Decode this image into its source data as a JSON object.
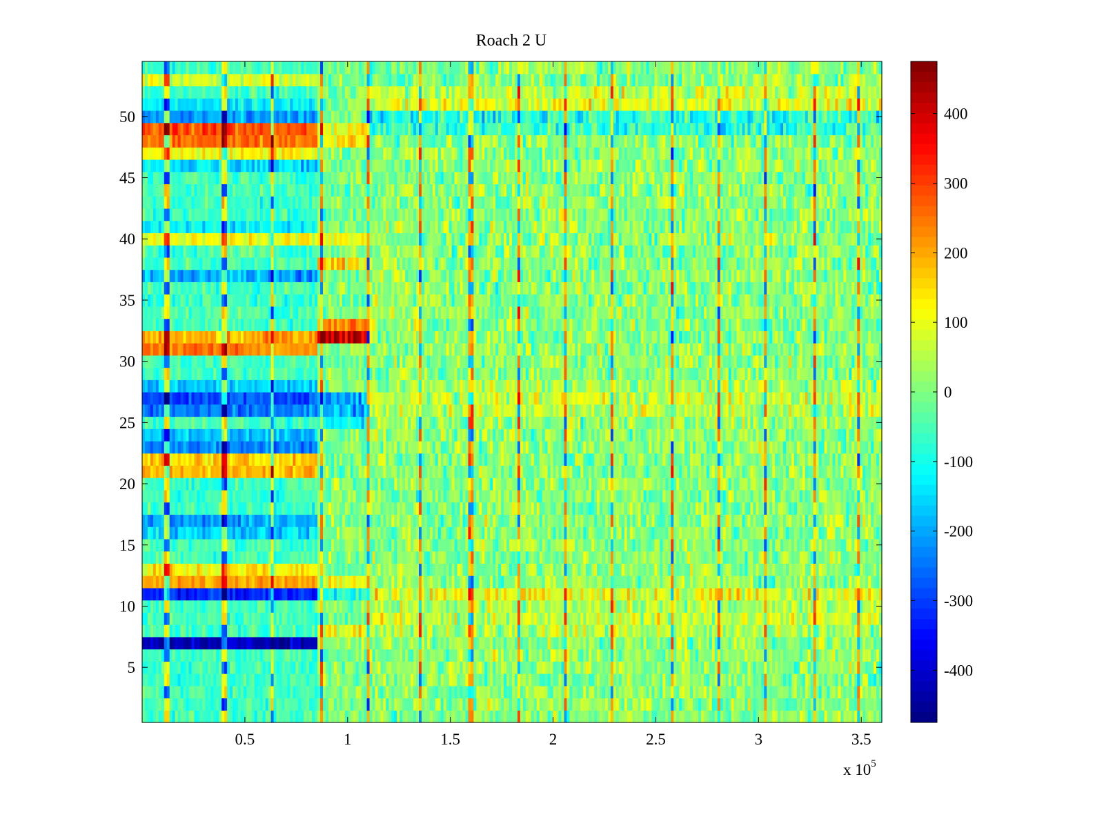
{
  "chart_data": {
    "type": "heatmap",
    "title": "Roach 2 U",
    "xlabel": "",
    "ylabel": "",
    "x_multiplier_label": {
      "base": "x 10",
      "exponent": "5"
    },
    "xlim": [
      0,
      360000
    ],
    "ylim": [
      0.5,
      54.5
    ],
    "rows": 54,
    "x_ticks": [
      {
        "value": 50000,
        "label": "0.5"
      },
      {
        "value": 100000,
        "label": "1"
      },
      {
        "value": 150000,
        "label": "1.5"
      },
      {
        "value": 200000,
        "label": "2"
      },
      {
        "value": 250000,
        "label": "2.5"
      },
      {
        "value": 300000,
        "label": "3"
      },
      {
        "value": 350000,
        "label": "3.5"
      }
    ],
    "y_ticks": [
      {
        "value": 5,
        "label": "5"
      },
      {
        "value": 10,
        "label": "10"
      },
      {
        "value": 15,
        "label": "15"
      },
      {
        "value": 20,
        "label": "20"
      },
      {
        "value": 25,
        "label": "25"
      },
      {
        "value": 30,
        "label": "30"
      },
      {
        "value": 35,
        "label": "35"
      },
      {
        "value": 40,
        "label": "40"
      },
      {
        "value": 45,
        "label": "45"
      },
      {
        "value": 50,
        "label": "50"
      }
    ],
    "colorbar": {
      "colormap": "jet",
      "range": [
        -475,
        475
      ],
      "ticks": [
        {
          "value": 400,
          "label": "400"
        },
        {
          "value": 300,
          "label": "300"
        },
        {
          "value": 200,
          "label": "200"
        },
        {
          "value": 100,
          "label": "100"
        },
        {
          "value": 0,
          "label": "0"
        },
        {
          "value": -100,
          "label": "-100"
        },
        {
          "value": -200,
          "label": "-200"
        },
        {
          "value": -300,
          "label": "-300"
        },
        {
          "value": -400,
          "label": "-400"
        }
      ]
    },
    "segment_boundaries_x": [
      0,
      86000,
      110000,
      360000
    ],
    "row_offsets_first_segment": {
      "7": -420,
      "11": -330,
      "12": 190,
      "13": 120,
      "16": -160,
      "17": -200,
      "21": 180,
      "22": 160,
      "23": -240,
      "24": -170,
      "26": -240,
      "27": -280,
      "28": -160,
      "31": 230,
      "32": 200,
      "37": -200,
      "40": 110,
      "41": -130,
      "46": -150,
      "47": 120,
      "48": 250,
      "49": 280,
      "50": -210,
      "51": -130,
      "53": 80
    },
    "row_offsets_second_segment": {
      "8": 110,
      "11": -90,
      "12": 120,
      "25": -130,
      "26": -180,
      "27": -200,
      "32": 400,
      "33": 250,
      "38": 140,
      "40": 110,
      "48": 140,
      "49": 110
    },
    "row_offsets_third_segment": {
      "8": 40,
      "9": 60,
      "10": 40,
      "11": 100,
      "26": 50,
      "27": 60,
      "28": 40,
      "50": -90,
      "51": 90,
      "52": 60,
      "49": -70
    },
    "spike_columns_x": [
      12000,
      40000,
      63000,
      87000,
      110000,
      135000,
      160000,
      183000,
      206000,
      229000,
      258000,
      281000,
      303000,
      327000,
      349000
    ],
    "value_range": [
      -475,
      475
    ]
  }
}
